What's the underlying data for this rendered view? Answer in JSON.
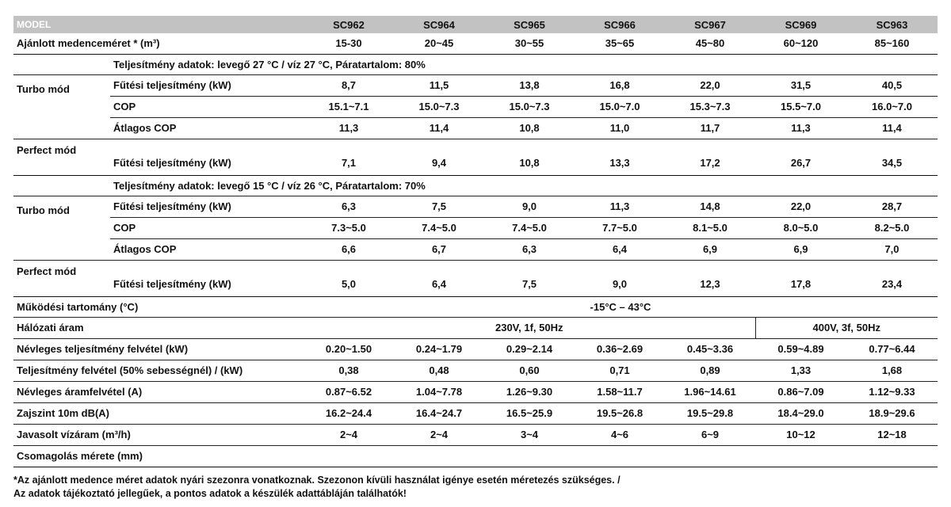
{
  "header": {
    "label": "MODEL",
    "models": [
      "SC962",
      "SC964",
      "SC965",
      "SC966",
      "SC967",
      "SC969",
      "SC963"
    ]
  },
  "pool_size": {
    "label": "Ajánlott medenceméret * (m³)",
    "values": [
      "15-30",
      "20~45",
      "30~55",
      "35~65",
      "45~80",
      "60~120",
      "85~160"
    ]
  },
  "section1": {
    "condition": "Teljesítmény adatok: levegő 27 °C / víz 27 °C, Páratartalom: 80%",
    "turbo": {
      "group_label": "Turbo mód",
      "heating": {
        "label": "Fűtési teljesítmény (kW)",
        "values": [
          "8,7",
          "11,5",
          "13,8",
          "16,8",
          "22,0",
          "31,5",
          "40,5"
        ]
      },
      "cop": {
        "label": "COP",
        "values": [
          "15.1~7.1",
          "15.0~7.3",
          "15.0~7.3",
          "15.0~7.0",
          "15.3~7.3",
          "15.5~7.0",
          "16.0~7.0"
        ]
      },
      "avg_cop": {
        "label": "Átlagos COP",
        "values": [
          "11,3",
          "11,4",
          "10,8",
          "11,0",
          "11,7",
          "11,3",
          "11,4"
        ]
      }
    },
    "perfect": {
      "group_label": "Perfect mód",
      "heating": {
        "label": "Fűtési teljesítmény (kW)",
        "values": [
          "7,1",
          "9,4",
          "10,8",
          "13,3",
          "17,2",
          "26,7",
          "34,5"
        ]
      }
    }
  },
  "section2": {
    "condition": "Teljesítmény adatok: levegő 15 °C / víz 26 °C, Páratartalom: 70%",
    "turbo": {
      "group_label": "Turbo mód",
      "heating": {
        "label": "Fűtési teljesítmény (kW)",
        "values": [
          "6,3",
          "7,5",
          "9,0",
          "11,3",
          "14,8",
          "22,0",
          "28,7"
        ]
      },
      "cop": {
        "label": "COP",
        "values": [
          "7.3~5.0",
          "7.4~5.0",
          "7.4~5.0",
          "7.7~5.0",
          "8.1~5.0",
          "8.0~5.0",
          "8.2~5.0"
        ]
      },
      "avg_cop": {
        "label": "Átlagos COP",
        "values": [
          "6,6",
          "6,7",
          "6,3",
          "6,4",
          "6,9",
          "6,9",
          "7,0"
        ]
      }
    },
    "perfect": {
      "group_label": "Perfect mód",
      "heating": {
        "label": "Fűtési teljesítmény (kW)",
        "values": [
          "5,0",
          "6,4",
          "7,5",
          "9,0",
          "12,3",
          "17,8",
          "23,4"
        ]
      }
    }
  },
  "operating_range": {
    "label": "Működési tartomány (°C)",
    "value": "-15°C – 43°C"
  },
  "power_supply": {
    "label": "Hálózati áram",
    "single_phase": "230V, 1f, 50Hz",
    "three_phase": "400V, 3f, 50Hz"
  },
  "rated_power_input": {
    "label": "Névleges teljesítmény felvétel (kW)",
    "values": [
      "0.20~1.50",
      "0.24~1.79",
      "0.29~2.14",
      "0.36~2.69",
      "0.45~3.36",
      "0.59~4.89",
      "0.77~6.44"
    ]
  },
  "power_input_50": {
    "label": "Teljesítmény felvétel (50% sebességnél) / (kW)",
    "values": [
      "0,38",
      "0,48",
      "0,60",
      "0,71",
      "0,89",
      "1,33",
      "1,68"
    ]
  },
  "rated_current": {
    "label": "Névleges áramfelvétel (A)",
    "values": [
      "0.87~6.52",
      "1.04~7.78",
      "1.26~9.30",
      "1.58~11.7",
      "1.96~14.61",
      "0.86~7.09",
      "1.12~9.33"
    ]
  },
  "noise": {
    "label": "Zajszint 10m dB(A)",
    "values": [
      "16.2~24.4",
      "16.4~24.7",
      "16.5~25.9",
      "19.5~26.8",
      "19.5~29.8",
      "18.4~29.0",
      "18.9~29.6"
    ]
  },
  "water_flow": {
    "label": "Javasolt vízáram (m³/h)",
    "values": [
      "2~4",
      "2~4",
      "3~4",
      "4~6",
      "6~9",
      "10~12",
      "12~18"
    ]
  },
  "package_size": {
    "label": "Csomagolás mérete (mm)"
  },
  "notes": {
    "line1": "*Az ajánlott medence méret adatok nyári szezonra vonatkoznak. Szezonon kívüli használat igénye esetén méretezés szükséges. /",
    "line2": "Az adatok tájékoztató jellegűek, a pontos adatok a készülék adattábláján találhatók!"
  }
}
